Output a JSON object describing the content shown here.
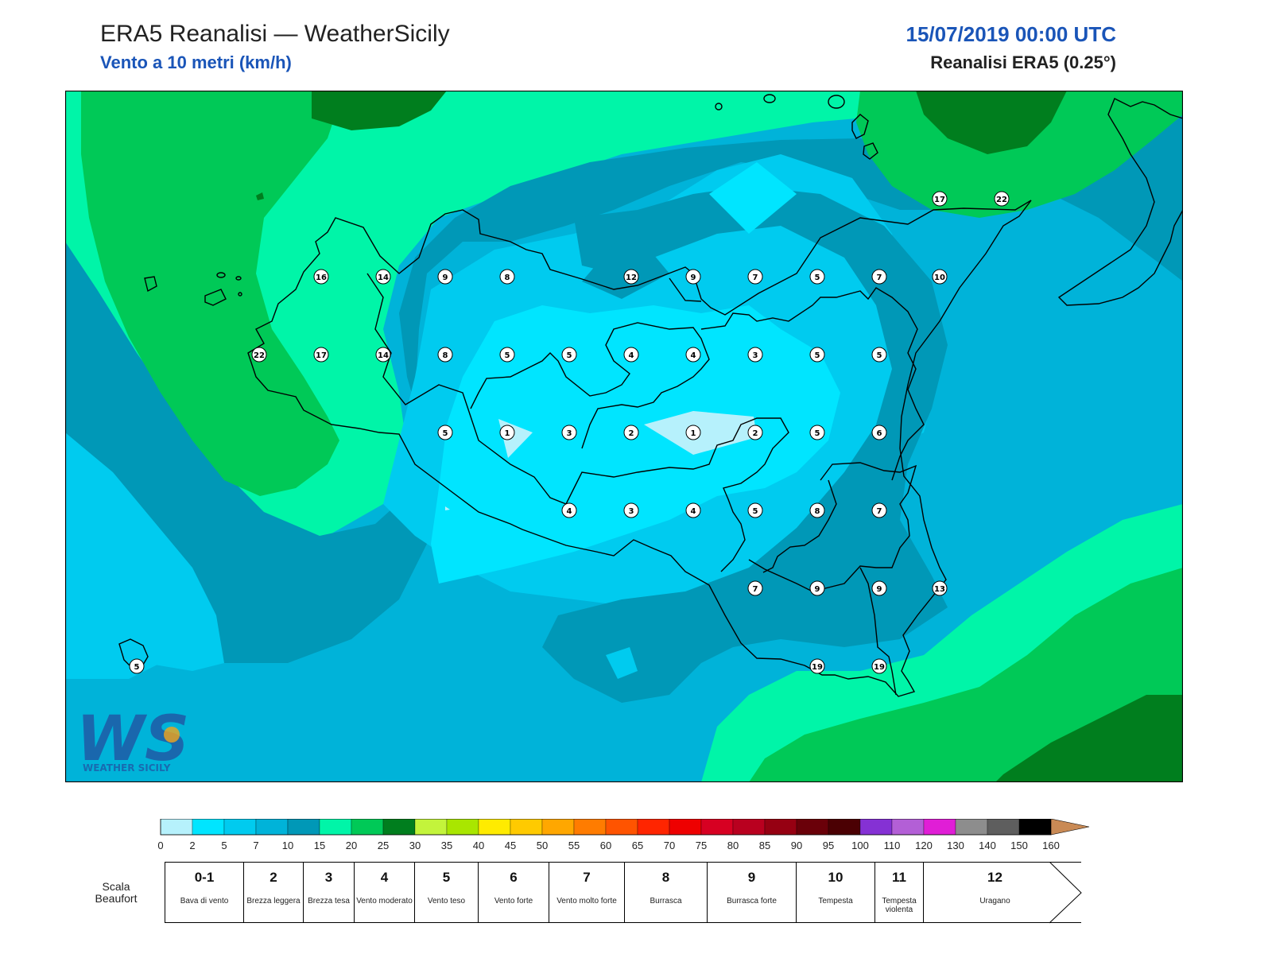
{
  "header": {
    "title": "ERA5 Reanalisi — WeatherSicily",
    "subtitle": "Vento a 10 metri (km/h)",
    "datetime": "15/07/2019 00:00 UTC",
    "resolution": "Reanalisi ERA5 (0.25°)"
  },
  "logo": {
    "letters": "WS",
    "wordmark": "WEATHER SICILY"
  },
  "colors": {
    "c0": "#b6f1fc",
    "c2": "#00e5ff",
    "c5": "#00cbef",
    "c7": "#00b3d9",
    "c10": "#0098b7",
    "c15": "#00f5a8",
    "c20": "#00c957",
    "c25": "#007e1e",
    "coast": "#000000"
  },
  "colorbar": {
    "ticks": [
      "0",
      "2",
      "5",
      "7",
      "10",
      "15",
      "20",
      "25",
      "30",
      "35",
      "40",
      "45",
      "50",
      "55",
      "60",
      "65",
      "70",
      "75",
      "80",
      "85",
      "90",
      "95",
      "100",
      "110",
      "120",
      "130",
      "140",
      "150",
      "160"
    ],
    "colors": [
      "#b6f1fc",
      "#00e5ff",
      "#00cbef",
      "#00b3d9",
      "#0098b7",
      "#00f5a8",
      "#00c957",
      "#007e1e",
      "#c3f43b",
      "#a9e600",
      "#ffeb00",
      "#ffca00",
      "#ffa700",
      "#ff7c00",
      "#ff5400",
      "#ff2500",
      "#ee0000",
      "#d70022",
      "#b9001f",
      "#960012",
      "#6a0009",
      "#4b0003",
      "#8531d4",
      "#b35fd6",
      "#e01ed6",
      "#8d8d8d",
      "#5e5e5e",
      "#000000",
      "#8f4e2c",
      "#c98a55"
    ]
  },
  "beaufort": {
    "caption": [
      "Scala",
      "Beaufort"
    ],
    "items": [
      {
        "num": "0-1",
        "name": "Bava di vento"
      },
      {
        "num": "2",
        "name": "Brezza leggera"
      },
      {
        "num": "3",
        "name": "Brezza tesa"
      },
      {
        "num": "4",
        "name": "Vento moderato"
      },
      {
        "num": "5",
        "name": "Vento teso"
      },
      {
        "num": "6",
        "name": "Vento forte"
      },
      {
        "num": "7",
        "name": "Vento molto forte"
      },
      {
        "num": "8",
        "name": "Burrasca"
      },
      {
        "num": "9",
        "name": "Burrasca forte"
      },
      {
        "num": "10",
        "name": "Tempesta"
      },
      {
        "num": "11",
        "name": "Tempesta violenta"
      },
      {
        "num": "12",
        "name": "Uragano"
      }
    ]
  },
  "stations": {
    "r1": [
      "17",
      "22"
    ],
    "r2": [
      "16",
      "14",
      "9",
      "8",
      "12",
      "9",
      "7",
      "5",
      "7",
      "10"
    ],
    "r3": [
      "22",
      "17",
      "14",
      "8",
      "5",
      "5",
      "4",
      "4",
      "3",
      "5",
      "5"
    ],
    "r4": [
      "5",
      "1",
      "3",
      "2",
      "1",
      "2",
      "5",
      "6"
    ],
    "r5": [
      "4",
      "3",
      "4",
      "5",
      "8",
      "7"
    ],
    "r6": [
      "7",
      "9",
      "9",
      "13"
    ],
    "r7": [
      "19",
      "19"
    ],
    "r8": [
      "5"
    ]
  }
}
